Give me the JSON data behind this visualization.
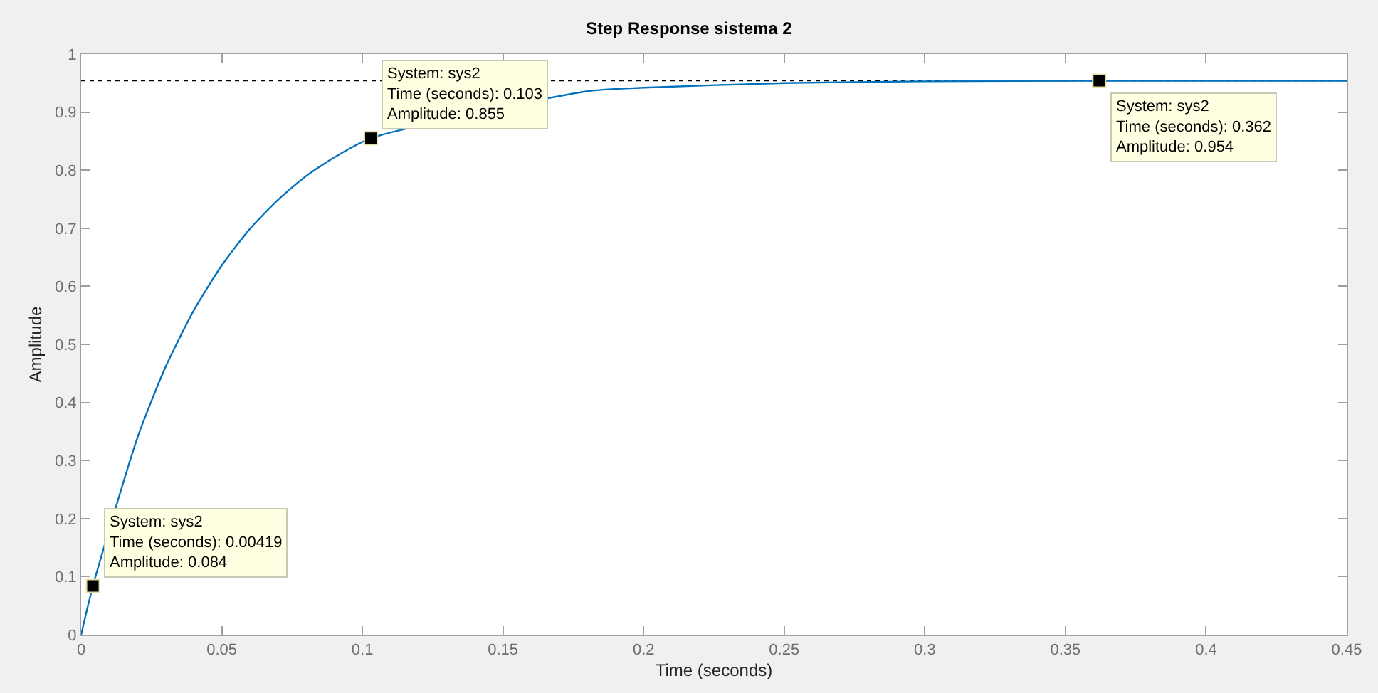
{
  "chart_data": {
    "type": "line",
    "title": "Step Response sistema 2",
    "xlabel": "Time (seconds)",
    "ylabel": "Amplitude",
    "x": [
      0,
      0.00419,
      0.02,
      0.03,
      0.04,
      0.05,
      0.06,
      0.07,
      0.08,
      0.09,
      0.103,
      0.18,
      0.2,
      0.25,
      0.3,
      0.362,
      0.45
    ],
    "series": [
      {
        "color": "#0072bd",
        "values": [
          0,
          0.084,
          0.339,
          0.461,
          0.558,
          0.636,
          0.699,
          0.749,
          0.79,
          0.822,
          0.855,
          0.936,
          0.942,
          0.95,
          0.953,
          0.954,
          0.954
        ]
      },
      {
        "type": "scatter",
        "color": "#000000",
        "marker": "square",
        "x": [
          0.00419,
          0.103,
          0.362
        ],
        "values": [
          0.084,
          0.855,
          0.954
        ]
      }
    ],
    "xlim": [
      0,
      0.45
    ],
    "ylim": [
      0,
      1
    ],
    "xticks": [
      0,
      0.05,
      0.1,
      0.15,
      0.2,
      0.25,
      0.3,
      0.35,
      0.4,
      0.45
    ],
    "yticks": [
      0,
      0.1,
      0.2,
      0.3,
      0.4,
      0.5,
      0.6,
      0.7,
      0.8,
      0.9,
      1
    ],
    "ref_lines": [
      {
        "axis": "y",
        "value": 0.954,
        "color": "#000000",
        "line_style": "dotted"
      }
    ],
    "annotations": [
      {
        "text": "System: sys2\nTime (seconds): 0.00419\nAmplitude: 0.084",
        "x": 0.00419,
        "y": 0.084
      },
      {
        "text": "System: sys2\nTime (seconds): 0.103\nAmplitude: 0.855",
        "x": 0.103,
        "y": 0.855
      },
      {
        "text": "System: sys2\nTime (seconds): 0.362\nAmplitude: 0.954",
        "x": 0.362,
        "y": 0.954
      }
    ],
    "grid": false,
    "line_style": "solid"
  }
}
